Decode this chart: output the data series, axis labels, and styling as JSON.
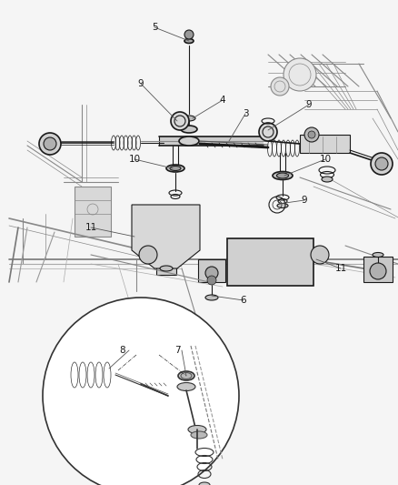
{
  "bg_color": "#f0f0f0",
  "line_color": "#1a1a1a",
  "text_color": "#1a1a1a",
  "fig_width": 4.38,
  "fig_height": 5.33,
  "dpi": 100
}
